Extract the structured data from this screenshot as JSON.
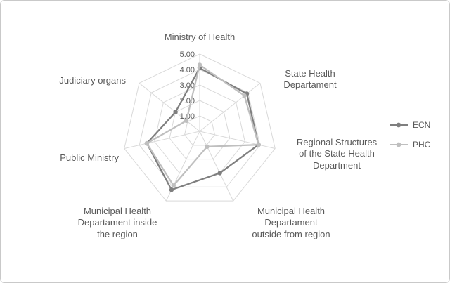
{
  "chart_data": {
    "type": "radar",
    "title": "",
    "categories": [
      "Ministry of Health",
      "State Health\nDepartament",
      "Regional Structures\nof the State Health\nDepartment",
      "Municipal Health\nDepartament\noutside from region",
      "Municipal Health\nDepartament inside\nthe region",
      "Public Ministry",
      "Judiciary organs"
    ],
    "series": [
      {
        "name": "ECN",
        "color": "#7f7f7f",
        "values": [
          4.1,
          3.9,
          3.9,
          3.0,
          4.2,
          3.5,
          2.0
        ]
      },
      {
        "name": "PHC",
        "color": "#bfbfbf",
        "values": [
          4.3,
          3.7,
          3.9,
          1.1,
          3.9,
          3.5,
          1.1
        ]
      }
    ],
    "ticks": [
      "1.00",
      "2.00",
      "3.00",
      "4.00",
      "5.00"
    ],
    "ylim": [
      0,
      5
    ],
    "grid": true,
    "grid_color": "#d9d9d9",
    "text_color": "#595959",
    "legend_position": "right"
  }
}
